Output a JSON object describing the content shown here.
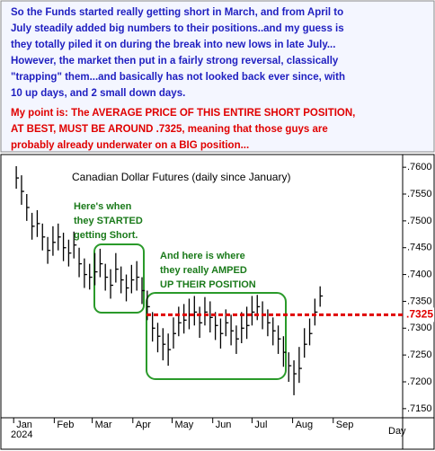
{
  "chart_data": {
    "type": "ohlc",
    "note": {
      "lines": [
        "So the Funds started really getting short in March, and from April to",
        "July steadily added big numbers to their positions..and my guess is",
        "they totally piled it on during the break into new lows in  late July...",
        "However, the market then put in a fairly strong reversal, classically",
        "\"trapping\" them...and basically has not looked back ever since, with",
        "10 up days, and 2 small down days."
      ],
      "color": "#1f1fc0",
      "point_lines": [
        "My point is: The AVERAGE PRICE OF THIS ENTIRE SHORT POSITION,",
        "AT BEST, MUST BE AROUND .7325, meaning that those guys are",
        "probably already underwater on a BIG position..."
      ],
      "point_color": "#e00000"
    },
    "title": "Canadian Dollar Futures (daily since January)",
    "annotations": [
      {
        "lines": [
          "Here's when",
          "they STARTED",
          "getting Short."
        ],
        "color": "#1a7a1a"
      },
      {
        "lines": [
          "And here is where",
          "they really AMPED",
          "UP THEIR POSITION"
        ],
        "color": "#1a7a1a"
      }
    ],
    "year_label": "2024",
    "x_axis_label": "Day",
    "x": [
      2,
      6,
      10,
      14,
      18,
      22,
      26,
      30,
      34,
      38,
      42,
      46,
      50,
      54,
      58,
      62,
      66,
      70,
      74,
      78,
      82,
      86,
      90,
      94,
      98,
      102,
      106,
      110,
      114,
      118,
      122,
      126,
      130,
      134,
      138,
      142,
      146,
      150,
      154,
      158,
      162,
      166,
      170,
      174,
      178,
      182,
      186,
      190,
      194,
      198,
      202,
      206,
      210,
      214,
      218,
      222,
      226,
      230,
      234
    ],
    "series": [
      {
        "name": "high",
        "values": [
          0.7602,
          0.7585,
          0.755,
          0.7515,
          0.752,
          0.7495,
          0.747,
          0.749,
          0.7495,
          0.7478,
          0.7465,
          0.748,
          0.745,
          0.743,
          0.742,
          0.744,
          0.7448,
          0.742,
          0.741,
          0.744,
          0.7415,
          0.74,
          0.7418,
          0.7425,
          0.7395,
          0.737,
          0.733,
          0.731,
          0.73,
          0.729,
          0.732,
          0.734,
          0.7345,
          0.7355,
          0.736,
          0.734,
          0.7358,
          0.735,
          0.733,
          0.7318,
          0.7335,
          0.7325,
          0.7305,
          0.733,
          0.734,
          0.736,
          0.7362,
          0.735,
          0.7335,
          0.732,
          0.7305,
          0.7285,
          0.7255,
          0.724,
          0.7265,
          0.73,
          0.7318,
          0.7355,
          0.7378
        ]
      },
      {
        "name": "low",
        "values": [
          0.756,
          0.753,
          0.75,
          0.7465,
          0.747,
          0.7445,
          0.742,
          0.7435,
          0.7445,
          0.7425,
          0.7415,
          0.743,
          0.7395,
          0.7375,
          0.7372,
          0.738,
          0.7395,
          0.737,
          0.7355,
          0.7385,
          0.7365,
          0.735,
          0.7365,
          0.737,
          0.7345,
          0.7315,
          0.7275,
          0.7255,
          0.724,
          0.723,
          0.7262,
          0.7285,
          0.729,
          0.7298,
          0.7305,
          0.7282,
          0.7305,
          0.7292,
          0.7278,
          0.7262,
          0.7285,
          0.7268,
          0.7252,
          0.7272,
          0.728,
          0.7305,
          0.7315,
          0.7298,
          0.7285,
          0.7268,
          0.7252,
          0.7228,
          0.72,
          0.7175,
          0.7198,
          0.7245,
          0.7268,
          0.7305,
          0.734
        ]
      },
      {
        "name": "close",
        "values": [
          0.758,
          0.7555,
          0.7525,
          0.749,
          0.7495,
          0.747,
          0.7445,
          0.746,
          0.747,
          0.745,
          0.744,
          0.7455,
          0.742,
          0.74,
          0.7395,
          0.7405,
          0.742,
          0.7395,
          0.738,
          0.741,
          0.739,
          0.7375,
          0.739,
          0.7395,
          0.737,
          0.734,
          0.73,
          0.7285,
          0.727,
          0.726,
          0.729,
          0.731,
          0.7315,
          0.7325,
          0.733,
          0.731,
          0.733,
          0.732,
          0.7305,
          0.729,
          0.731,
          0.7295,
          0.728,
          0.73,
          0.7305,
          0.733,
          0.734,
          0.7325,
          0.731,
          0.7295,
          0.728,
          0.7255,
          0.723,
          0.7215,
          0.7225,
          0.727,
          0.729,
          0.733,
          0.736
        ]
      }
    ],
    "bar_color": "#000000",
    "xlim": [
      -7,
      297
    ],
    "xticks": [
      {
        "value": 0,
        "label": "Jan"
      },
      {
        "value": 31,
        "label": "Feb"
      },
      {
        "value": 60,
        "label": "Mar"
      },
      {
        "value": 91,
        "label": "Apr"
      },
      {
        "value": 121,
        "label": "May"
      },
      {
        "value": 152,
        "label": "Jun"
      },
      {
        "value": 182,
        "label": "Jul"
      },
      {
        "value": 213,
        "label": "Aug"
      },
      {
        "value": 244,
        "label": "Sep"
      }
    ],
    "ylim": [
      0.7133,
      0.7617
    ],
    "yticks": [
      {
        "value": 0.76,
        "label": ".7600"
      },
      {
        "value": 0.755,
        "label": ".7550"
      },
      {
        "value": 0.75,
        "label": ".7500"
      },
      {
        "value": 0.745,
        "label": ".7450"
      },
      {
        "value": 0.74,
        "label": ".7400"
      },
      {
        "value": 0.735,
        "label": ".7350"
      },
      {
        "value": 0.73,
        "label": ".7300"
      },
      {
        "value": 0.725,
        "label": ".7250"
      },
      {
        "value": 0.72,
        "label": ".7200"
      },
      {
        "value": 0.715,
        "label": ".7150"
      }
    ],
    "reference_line": {
      "value": 0.7325,
      "label": ".7325",
      "color": "#e00000"
    },
    "grid": false
  }
}
